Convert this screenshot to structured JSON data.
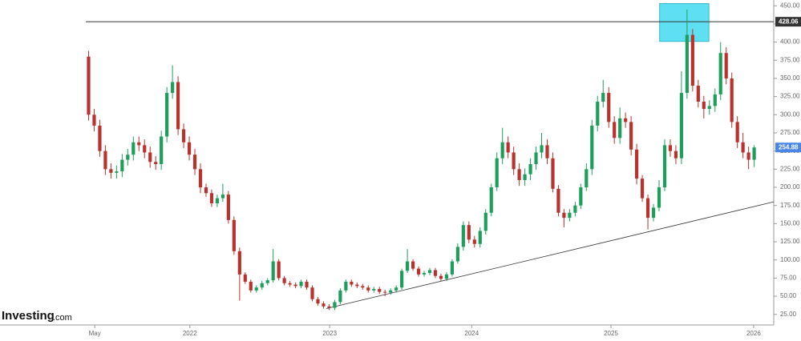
{
  "chart_data": {
    "type": "candlestick",
    "up_color": "#1e9e5c",
    "down_color": "#b8322e",
    "xlim": [
      0,
      123
    ],
    "xticks": [
      {
        "value": 1.6,
        "label": "May"
      },
      {
        "value": 18.6,
        "label": "2022"
      },
      {
        "value": 43.6,
        "label": "2023"
      },
      {
        "value": 69,
        "label": "2024"
      },
      {
        "value": 93.9,
        "label": "2025"
      },
      {
        "value": 119.4,
        "label": "2026"
      }
    ],
    "ylim": [
      17,
      458
    ],
    "yticks": [
      {
        "value": 25,
        "label": "25.00"
      },
      {
        "value": 50,
        "label": "50.00"
      },
      {
        "value": 75,
        "label": "75.00"
      },
      {
        "value": 100,
        "label": "100.00"
      },
      {
        "value": 125,
        "label": "125.00"
      },
      {
        "value": 150,
        "label": "150.00"
      },
      {
        "value": 175,
        "label": "175.00"
      },
      {
        "value": 200,
        "label": "200.00"
      },
      {
        "value": 225,
        "label": "225.00"
      },
      {
        "value": 250,
        "label": "250.00"
      },
      {
        "value": 275,
        "label": "275.00"
      },
      {
        "value": 300,
        "label": "300.00"
      },
      {
        "value": 325,
        "label": "325.00"
      },
      {
        "value": 350,
        "label": "350.00"
      },
      {
        "value": 375,
        "label": "375.00"
      },
      {
        "value": 400,
        "label": "400.00"
      },
      {
        "value": 425,
        "label": "425.00"
      },
      {
        "value": 450,
        "label": "450.00"
      }
    ],
    "open": [
      380,
      300,
      285,
      250,
      225,
      220,
      222,
      238,
      245,
      262,
      258,
      248,
      235,
      232,
      270,
      330,
      345,
      280,
      262,
      245,
      225,
      200,
      192,
      178,
      185,
      190,
      155,
      112,
      80,
      70,
      58,
      62,
      68,
      72,
      98,
      75,
      68,
      66,
      64,
      70,
      62,
      46,
      40,
      36,
      34,
      42,
      58,
      70,
      66,
      64,
      62,
      58,
      60,
      56,
      55,
      58,
      62,
      85,
      98,
      88,
      80,
      82,
      86,
      78,
      74,
      80,
      98,
      118,
      148,
      128,
      122,
      140,
      165,
      200,
      240,
      262,
      248,
      225,
      210,
      218,
      232,
      248,
      258,
      240,
      198,
      165,
      158,
      165,
      175,
      200,
      225,
      285,
      318,
      330,
      290,
      268,
      295,
      290,
      252,
      212,
      185,
      158,
      172,
      200,
      258,
      250,
      240,
      330,
      410,
      340,
      318,
      308,
      312,
      328,
      385,
      350,
      290,
      262,
      248,
      238
    ],
    "high": [
      388,
      308,
      293,
      258,
      233,
      230,
      246,
      253,
      270,
      270,
      266,
      256,
      243,
      278,
      338,
      368,
      353,
      288,
      270,
      253,
      233,
      205,
      197,
      190,
      205,
      195,
      160,
      117,
      83,
      73,
      65,
      71,
      75,
      115,
      101,
      78,
      71,
      69,
      73,
      73,
      65,
      49,
      43,
      39,
      45,
      61,
      73,
      73,
      69,
      67,
      65,
      63,
      63,
      59,
      61,
      65,
      88,
      115,
      101,
      91,
      85,
      89,
      89,
      81,
      83,
      101,
      123,
      153,
      153,
      133,
      145,
      170,
      205,
      248,
      282,
      270,
      256,
      233,
      226,
      240,
      256,
      275,
      266,
      248,
      203,
      170,
      170,
      180,
      205,
      233,
      293,
      326,
      348,
      338,
      298,
      310,
      303,
      298,
      260,
      217,
      190,
      177,
      210,
      266,
      266,
      258,
      360,
      445,
      418,
      348,
      326,
      320,
      336,
      400,
      393,
      358,
      298,
      275,
      256,
      258
    ],
    "low": [
      292,
      277,
      242,
      217,
      212,
      212,
      214,
      230,
      237,
      250,
      240,
      227,
      224,
      224,
      262,
      322,
      272,
      254,
      237,
      217,
      192,
      187,
      173,
      173,
      180,
      150,
      107,
      44,
      67,
      55,
      55,
      59,
      65,
      69,
      72,
      65,
      63,
      61,
      61,
      59,
      43,
      37,
      33,
      31,
      31,
      39,
      55,
      63,
      61,
      59,
      55,
      55,
      53,
      50,
      52,
      55,
      59,
      82,
      85,
      77,
      77,
      79,
      75,
      71,
      71,
      77,
      95,
      113,
      123,
      117,
      117,
      135,
      160,
      195,
      232,
      240,
      217,
      202,
      202,
      210,
      224,
      240,
      232,
      193,
      160,
      145,
      153,
      160,
      170,
      195,
      217,
      277,
      310,
      282,
      260,
      260,
      282,
      244,
      204,
      180,
      142,
      153,
      167,
      195,
      242,
      232,
      232,
      322,
      332,
      310,
      295,
      300,
      304,
      320,
      342,
      282,
      254,
      240,
      225,
      228
    ],
    "close": [
      300,
      285,
      250,
      225,
      220,
      222,
      238,
      245,
      262,
      258,
      248,
      235,
      232,
      270,
      330,
      345,
      280,
      262,
      245,
      225,
      200,
      192,
      178,
      185,
      190,
      155,
      112,
      80,
      70,
      58,
      62,
      68,
      72,
      98,
      75,
      68,
      66,
      64,
      70,
      62,
      46,
      40,
      36,
      34,
      42,
      58,
      70,
      66,
      64,
      62,
      58,
      60,
      56,
      55,
      58,
      62,
      85,
      98,
      88,
      80,
      82,
      86,
      78,
      74,
      80,
      98,
      118,
      148,
      128,
      122,
      140,
      165,
      200,
      240,
      262,
      248,
      225,
      210,
      218,
      232,
      248,
      258,
      240,
      198,
      165,
      158,
      165,
      175,
      200,
      225,
      285,
      318,
      330,
      290,
      268,
      295,
      290,
      252,
      212,
      185,
      158,
      172,
      200,
      258,
      250,
      240,
      330,
      410,
      340,
      318,
      308,
      312,
      328,
      385,
      350,
      290,
      262,
      248,
      238,
      254.88
    ],
    "hline": {
      "value": 428.06,
      "color": "#333333"
    },
    "trendline": {
      "x": [
        43,
        123
      ],
      "y": [
        33,
        180
      ],
      "color": "#333333"
    },
    "highlight": {
      "x": [
        102.6,
        111.4
      ],
      "y": [
        401,
        453
      ],
      "color": "#5fe0f2"
    },
    "last_price_color": "#4a86e8",
    "logo": {
      "brand": "Investing",
      "suffix": ".com"
    }
  }
}
